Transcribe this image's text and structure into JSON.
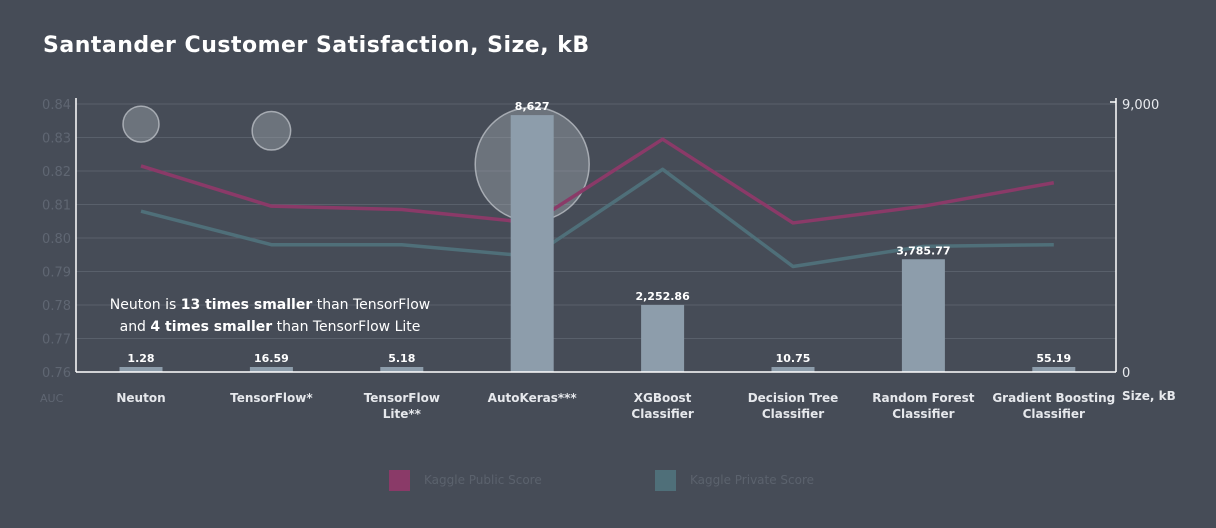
{
  "chart_data": {
    "type": "bar",
    "title": "Santander Customer Satisfaction, Size, kB",
    "categories": [
      [
        "Neuton"
      ],
      [
        "TensorFlow*"
      ],
      [
        "TensorFlow",
        "Lite**"
      ],
      [
        "AutoKeras***"
      ],
      [
        "XGBoost",
        "Classifier"
      ],
      [
        "Decision Tree",
        "Classifier"
      ],
      [
        "Random Forest",
        "Classifier"
      ],
      [
        "Gradient Boosting",
        "Classifier"
      ]
    ],
    "size_series": {
      "values": [
        1.28,
        16.59,
        5.18,
        8627,
        2252.86,
        10.75,
        3785.77,
        55.19
      ],
      "labels": [
        "1.28",
        "16.59",
        "5.18",
        "8,627",
        "2,252.86",
        "10.75",
        "3,785.77",
        "55.19"
      ],
      "color": "#8d9dab"
    },
    "size_bubbles": {
      "categories_index": [
        0,
        1,
        3
      ],
      "values": [
        1.28,
        16.59,
        8627
      ],
      "y_auc": [
        0.834,
        0.832,
        0.822
      ],
      "color": "#9ca3ab"
    },
    "series": [
      {
        "name": "Kaggle Public Score",
        "color": "#8a3a68",
        "values": [
          0.8215,
          0.8095,
          0.8085,
          0.8045,
          0.8295,
          0.8045,
          0.8095,
          0.8165
        ]
      },
      {
        "name": "Kaggle Private Score",
        "color": "#4f6f79",
        "values": [
          0.808,
          0.798,
          0.798,
          0.7945,
          0.8205,
          0.7915,
          0.7975,
          0.798
        ]
      }
    ],
    "y_left": {
      "label": "AUC",
      "ylim": [
        0.76,
        0.84
      ],
      "ticks": [
        "0.84",
        "0.83",
        "0.82",
        "0.81",
        "0.80",
        "0.79",
        "0.78",
        "0.77",
        "0.76"
      ]
    },
    "y_right": {
      "label": "Size, kB",
      "ylim": [
        0,
        9000
      ],
      "ticks": [
        "9,000",
        "0"
      ]
    },
    "grid": true,
    "legend_position": "bottom",
    "annotation": [
      [
        {
          "t": "Neuton is ",
          "b": false
        },
        {
          "t": "13 times smaller",
          "b": true
        },
        {
          "t": " than TensorFlow",
          "b": false
        }
      ],
      [
        {
          "t": "and ",
          "b": false
        },
        {
          "t": "4 times smaller",
          "b": true
        },
        {
          "t": " than TensorFlow Lite",
          "b": false
        }
      ]
    ]
  }
}
